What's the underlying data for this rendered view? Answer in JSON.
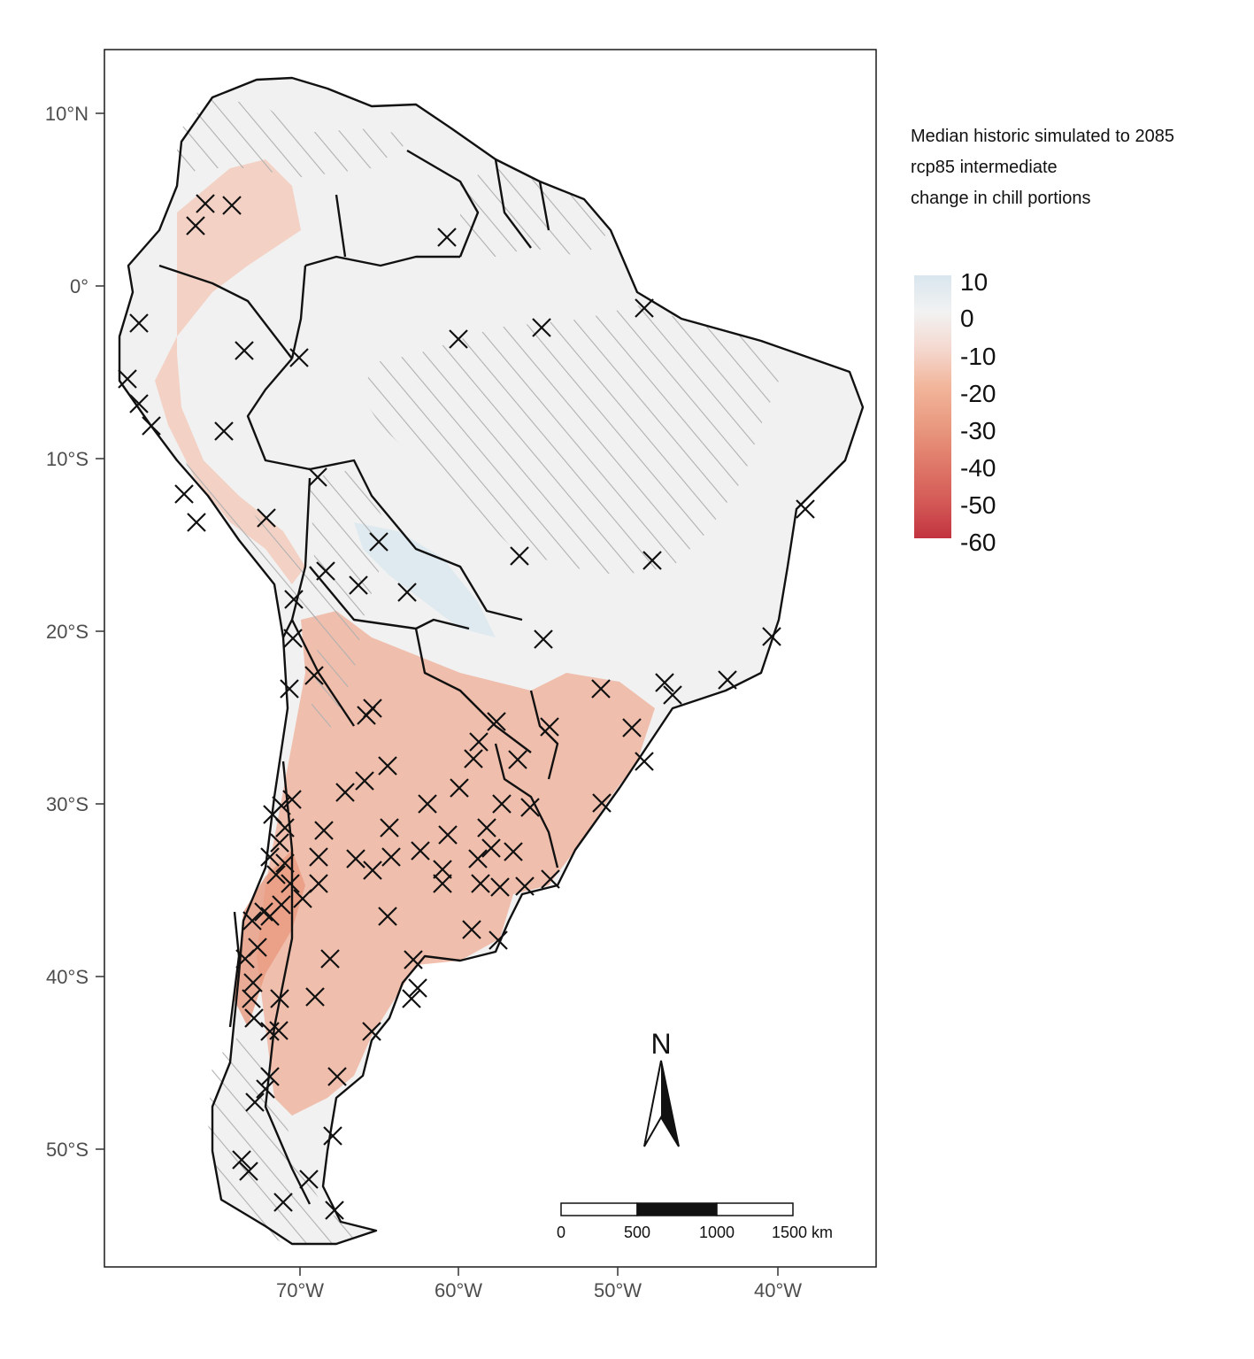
{
  "map": {
    "legend": {
      "title_lines": [
        "Median historic simulated to 2085",
        "rcp85 intermediate",
        "change in chill portions"
      ],
      "labels": [
        "10",
        "0",
        "-10",
        "-20",
        "-30",
        "-40",
        "-50",
        "-60"
      ],
      "colors": {
        "max": "#d9e6ee",
        "zero": "#f2f2f2",
        "neg20": "#f2b69c",
        "neg40": "#e07a6a",
        "min": "#c2333f"
      }
    },
    "axes": {
      "lat_labels": [
        "10°N",
        "0°",
        "10°S",
        "20°S",
        "30°S",
        "40°S",
        "50°S"
      ],
      "lon_labels": [
        "70°W",
        "60°W",
        "50°W",
        "40°W"
      ]
    },
    "scale_bar": {
      "labels": [
        "0",
        "500",
        "1000",
        "1500 km"
      ]
    },
    "north_arrow": {
      "label": "N"
    },
    "colors": {
      "border": "#111111",
      "hatch": "#b0b0b0",
      "marker": "#111111"
    }
  }
}
